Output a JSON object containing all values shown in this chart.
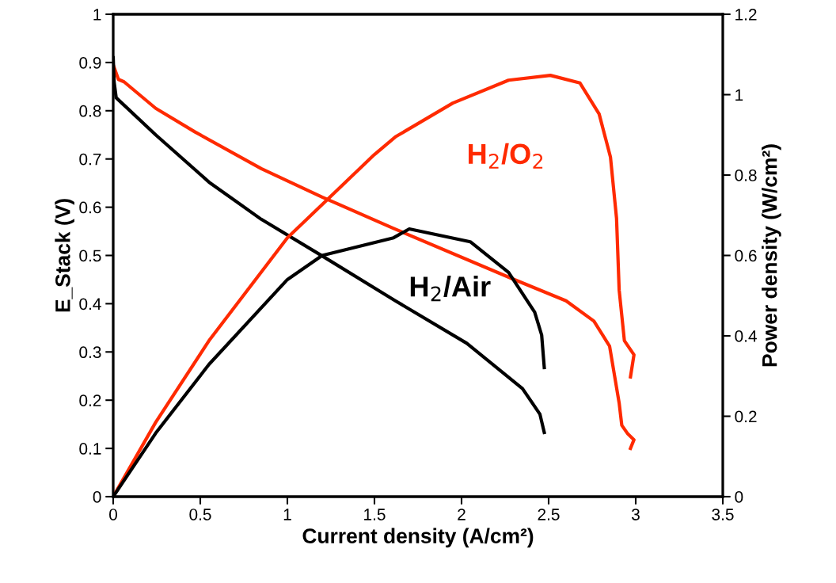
{
  "chart_data": {
    "type": "line",
    "xlabel": "Current density (A/cm²)",
    "ylabel": "E_Stack (V)",
    "y2label": "Power density (W/cm²)",
    "xlim": [
      0,
      3.5
    ],
    "xticks": [
      0,
      0.5,
      1,
      1.5,
      2,
      2.5,
      3,
      3.5
    ],
    "ylim": [
      0,
      1
    ],
    "yticks": [
      0,
      0.1,
      0.2,
      0.3,
      0.4,
      0.5,
      0.6,
      0.7,
      0.8,
      0.9,
      1
    ],
    "y2lim": [
      0,
      1.2
    ],
    "y2ticks": [
      0,
      0.2,
      0.4,
      0.6,
      0.8,
      1,
      1.2
    ],
    "grid": false,
    "legend": false,
    "marker": "none",
    "line_style": "solid",
    "series": [
      {
        "color": "#ff2a00",
        "x": [
          0,
          0.03,
          0.062,
          0.244,
          0.47,
          0.85,
          1.2,
          1.61,
          2.29,
          2.6,
          2.76,
          2.85,
          2.905,
          2.92,
          2.955,
          2.99,
          2.97
        ],
        "values": [
          0.895,
          0.865,
          0.86,
          0.805,
          0.756,
          0.68,
          0.621,
          0.556,
          0.452,
          0.406,
          0.364,
          0.312,
          0.194,
          0.148,
          0.13,
          0.118,
          0.1
        ]
      },
      {
        "color": "#ff2a00",
        "axis": "y2",
        "x": [
          0,
          0.244,
          0.55,
          1.0,
          1.5,
          1.62,
          1.95,
          2.27,
          2.51,
          2.68,
          2.79,
          2.855,
          2.89,
          2.905,
          2.935,
          2.99,
          2.97
        ],
        "values": [
          0,
          0.185,
          0.388,
          0.644,
          0.851,
          0.895,
          0.979,
          1.036,
          1.048,
          1.029,
          0.952,
          0.845,
          0.692,
          0.514,
          0.388,
          0.353,
          0.298
        ]
      },
      {
        "color": "#000000",
        "x": [
          0,
          0.005,
          0.017,
          0.244,
          0.55,
          0.85,
          1.2,
          1.62,
          2.03,
          2.35,
          2.45,
          2.475
        ],
        "values": [
          0.91,
          0.86,
          0.827,
          0.75,
          0.652,
          0.575,
          0.499,
          0.406,
          0.318,
          0.224,
          0.171,
          0.133
        ]
      },
      {
        "color": "#000000",
        "axis": "y2",
        "x": [
          0,
          0.244,
          0.55,
          1.0,
          1.2,
          1.61,
          1.7,
          2.05,
          2.27,
          2.42,
          2.46,
          2.475
        ],
        "values": [
          0,
          0.158,
          0.329,
          0.54,
          0.6,
          0.644,
          0.666,
          0.634,
          0.558,
          0.459,
          0.402,
          0.321
        ]
      }
    ],
    "annotations": [
      "H$_{2}$/O$_{2}$",
      "H$_{2}$/Air"
    ]
  }
}
